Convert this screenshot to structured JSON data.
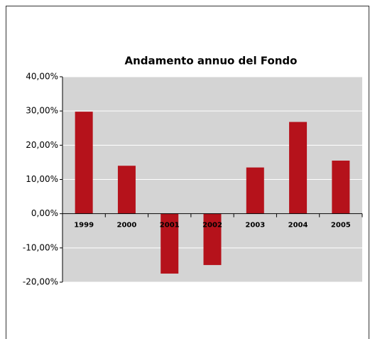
{
  "chart_data": {
    "type": "bar",
    "title": "Andamento annuo del Fondo",
    "categories": [
      "1999",
      "2000",
      "2001",
      "2002",
      "2003",
      "2004",
      "2005"
    ],
    "values": [
      29.8,
      14,
      -17.5,
      -15,
      13.5,
      26.8,
      15.5
    ],
    "color": "#b5121b",
    "ylim": [
      -20,
      40
    ],
    "yticks": [
      {
        "value": -20,
        "label": "-20,00%"
      },
      {
        "value": -10,
        "label": "-10,00%"
      },
      {
        "value": 0,
        "label": "0,00%"
      },
      {
        "value": 10,
        "label": "10,00%"
      },
      {
        "value": 20,
        "label": "20,00%"
      },
      {
        "value": 30,
        "label": "30,00%"
      },
      {
        "value": 40,
        "label": "40,00%"
      }
    ],
    "grid": true
  }
}
